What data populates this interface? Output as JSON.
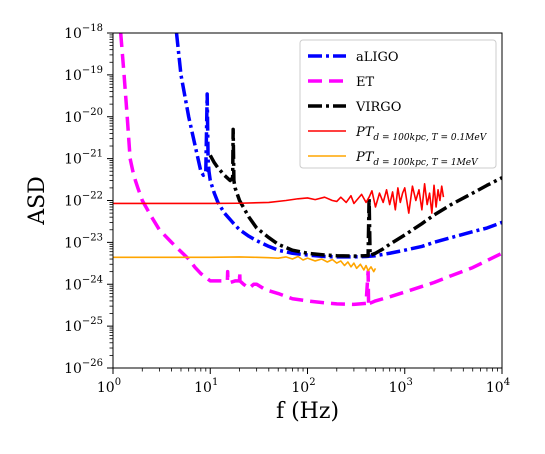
{
  "chart_data": {
    "type": "line",
    "title": "",
    "xlabel": "f (Hz)",
    "ylabel": "ASD",
    "xscale": "log",
    "yscale": "log",
    "xlim": [
      1,
      10000
    ],
    "ylim": [
      1e-26,
      1e-18
    ],
    "grid": false,
    "legend_position": "top-right",
    "x_ticks": [
      {
        "base": "10",
        "exp": "0"
      },
      {
        "base": "10",
        "exp": "1"
      },
      {
        "base": "10",
        "exp": "2"
      },
      {
        "base": "10",
        "exp": "3"
      },
      {
        "base": "10",
        "exp": "4"
      }
    ],
    "y_ticks": [
      {
        "base": "10",
        "exp": "−26"
      },
      {
        "base": "10",
        "exp": "−25"
      },
      {
        "base": "10",
        "exp": "−24"
      },
      {
        "base": "10",
        "exp": "−23"
      },
      {
        "base": "10",
        "exp": "−22"
      },
      {
        "base": "10",
        "exp": "−21"
      },
      {
        "base": "10",
        "exp": "−20"
      },
      {
        "base": "10",
        "exp": "−19"
      },
      {
        "base": "10",
        "exp": "−18"
      }
    ],
    "series": [
      {
        "name": "aLIGO",
        "color": "#0000ff",
        "dash": "dashdot",
        "x": [
          4.5,
          5,
          6,
          7,
          8,
          8.5,
          9,
          9.3,
          9.5,
          9.7,
          10,
          11,
          12,
          14,
          17,
          20,
          25,
          30,
          40,
          50,
          70,
          100,
          150,
          200,
          300,
          400,
          500,
          700,
          1000,
          1500,
          2000,
          3000,
          5000,
          7000,
          10000
        ],
        "y": [
          1e-18,
          1e-19,
          1e-20,
          2e-21,
          5e-22,
          4e-22,
          5e-22,
          3.5e-20,
          1e-21,
          5e-22,
          3e-22,
          1.5e-22,
          9e-23,
          5e-23,
          3e-23,
          2e-23,
          1.4e-23,
          1.1e-23,
          8e-24,
          6.5e-24,
          5.5e-24,
          5e-24,
          4.6e-24,
          4.5e-24,
          4.5e-24,
          4.6e-24,
          4.8e-24,
          5.5e-24,
          6.5e-24,
          8e-24,
          1e-23,
          1.3e-23,
          1.8e-23,
          2.2e-23,
          3e-23
        ]
      },
      {
        "name": "ET",
        "color": "#ff00ff",
        "dash": "dashed",
        "x": [
          1.2,
          1.3,
          1.4,
          1.5,
          1.6,
          1.7,
          1.8,
          2,
          2.5,
          3,
          4,
          5,
          6,
          7,
          8,
          10,
          12,
          15,
          15.1,
          15.2,
          16,
          18,
          20,
          20.1,
          20.2,
          22,
          25,
          28,
          30,
          35,
          40,
          50,
          70,
          100,
          150,
          200,
          300,
          400,
          420,
          425,
          430,
          450,
          500,
          700,
          1000,
          2000,
          3000,
          5000,
          10000
        ],
        "y": [
          1e-18,
          1e-19,
          1e-20,
          1e-21,
          5e-22,
          3e-22,
          2e-22,
          1e-22,
          4e-23,
          2e-23,
          1e-23,
          6e-24,
          4e-24,
          2.5e-24,
          1.8e-24,
          1.2e-24,
          1.2e-24,
          1.2e-24,
          2e-24,
          1.2e-24,
          1.1e-24,
          1.2e-24,
          1.2e-24,
          2e-24,
          1.2e-24,
          1e-24,
          8e-25,
          1e-24,
          1e-24,
          8e-25,
          7e-25,
          6e-25,
          4.5e-25,
          4e-25,
          3.6e-25,
          3.4e-25,
          3.3e-25,
          3.5e-25,
          2e-24,
          3e-25,
          3.5e-25,
          3.6e-25,
          4e-25,
          5e-25,
          6.5e-25,
          1.1e-24,
          1.6e-24,
          2.5e-24,
          5.5e-24
        ]
      },
      {
        "name": "VIRGO",
        "color": "#000000",
        "dash": "dashdot",
        "x": [
          10,
          11,
          12,
          14,
          16,
          17,
          17.2,
          17.5,
          18,
          20,
          25,
          30,
          40,
          50,
          70,
          100,
          150,
          200,
          300,
          400,
          420,
          430,
          440,
          450,
          500,
          600,
          700,
          1000,
          1500,
          2000,
          3000,
          5000,
          7000,
          10000
        ],
        "y": [
          1.2e-21,
          8e-22,
          6e-22,
          4e-22,
          3e-22,
          3.5e-22,
          5e-21,
          3e-22,
          2e-22,
          1e-22,
          4e-23,
          2.2e-23,
          1.3e-23,
          9e-24,
          6.5e-24,
          5.5e-24,
          5e-24,
          4.8e-24,
          4.7e-24,
          4.8e-24,
          4.8e-24,
          1.2e-22,
          5e-24,
          5e-24,
          5.5e-24,
          7e-24,
          9e-24,
          1.5e-23,
          2.8e-23,
          4.5e-23,
          8e-23,
          1.5e-22,
          2.3e-22,
          3.5e-22
        ]
      },
      {
        "name": "PT_{d=100kpc, T=0.1MeV}",
        "name_main": "PT",
        "name_sub": "d = 100kpc, T = 0.1MeV",
        "color": "#ff0000",
        "dash": "solid",
        "x": [
          1,
          3,
          10,
          20,
          40,
          60,
          80,
          100,
          120,
          150,
          180,
          200,
          220,
          250,
          280,
          300,
          330,
          360,
          400,
          430,
          460,
          500,
          550,
          600,
          650,
          700,
          750,
          800,
          850,
          900,
          950,
          1000,
          1100,
          1200,
          1300,
          1400,
          1500,
          1600,
          1700,
          1800,
          1900,
          2000,
          2100,
          2200,
          2300,
          2400,
          2500
        ],
        "y": [
          8.5e-23,
          8.5e-23,
          8.5e-23,
          8.6e-23,
          9e-23,
          1e-22,
          1.1e-22,
          1.15e-22,
          1.05e-22,
          1.2e-22,
          1e-22,
          9.5e-23,
          1.2e-22,
          9e-23,
          1.3e-22,
          8.5e-23,
          1.1e-22,
          1.4e-22,
          9e-23,
          1.2e-22,
          1.7e-22,
          7e-23,
          1.5e-22,
          9e-23,
          1.8e-22,
          8e-23,
          1.6e-22,
          6e-23,
          2e-22,
          9e-23,
          1.5e-22,
          2e-22,
          5e-23,
          2.2e-22,
          1e-22,
          1.8e-22,
          6e-23,
          2.5e-22,
          8e-23,
          1.5e-22,
          5e-23,
          2.3e-22,
          7e-23,
          1.8e-22,
          1e-22,
          2.2e-22,
          1.2e-22
        ]
      },
      {
        "name": "PT_{d=100kpc, T=1MeV}",
        "name_main": "PT",
        "name_sub": "d = 100kpc, T = 1MeV",
        "color": "#ffa500",
        "dash": "solid",
        "x": [
          1,
          3,
          10,
          20,
          30,
          40,
          50,
          60,
          70,
          80,
          90,
          100,
          120,
          140,
          160,
          180,
          200,
          220,
          240,
          260,
          280,
          300,
          320,
          350,
          380,
          400,
          420,
          450,
          480,
          500
        ],
        "y": [
          4.4e-24,
          4.4e-24,
          4.4e-24,
          4.5e-24,
          4.4e-24,
          4.3e-24,
          4.2e-24,
          4.5e-24,
          4e-24,
          4.6e-24,
          3.8e-24,
          4.2e-24,
          3.6e-24,
          4e-24,
          3.4e-24,
          3.9e-24,
          3.2e-24,
          3.6e-24,
          2.8e-24,
          3.4e-24,
          2.6e-24,
          3.2e-24,
          2.4e-24,
          3e-24,
          2.2e-24,
          2.8e-24,
          2.1e-24,
          2.6e-24,
          2e-24,
          2.4e-24
        ]
      }
    ]
  }
}
